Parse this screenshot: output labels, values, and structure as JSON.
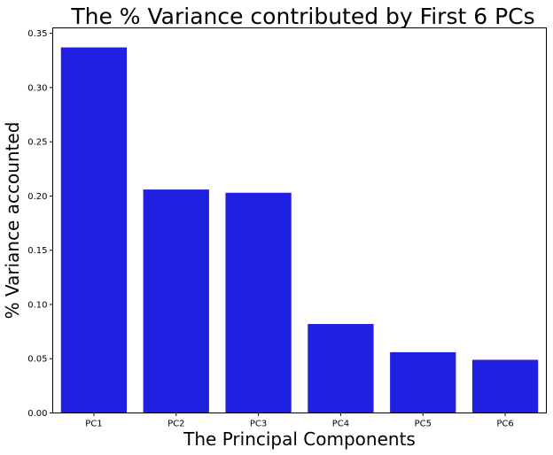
{
  "chart_data": {
    "type": "bar",
    "title": "The % Variance contributed by First 6 PCs",
    "xlabel": "The Principal Components",
    "ylabel": "% Variance accounted",
    "categories": [
      "PC1",
      "PC2",
      "PC3",
      "PC4",
      "PC5",
      "PC6"
    ],
    "values": [
      0.337,
      0.206,
      0.203,
      0.082,
      0.056,
      0.049
    ],
    "ylim": [
      0,
      0.355
    ],
    "yticks": [
      "0.00",
      "0.05",
      "0.10",
      "0.15",
      "0.20",
      "0.25",
      "0.30",
      "0.35"
    ],
    "bar_color": "#2020e0",
    "grid": false,
    "legend": "none"
  }
}
